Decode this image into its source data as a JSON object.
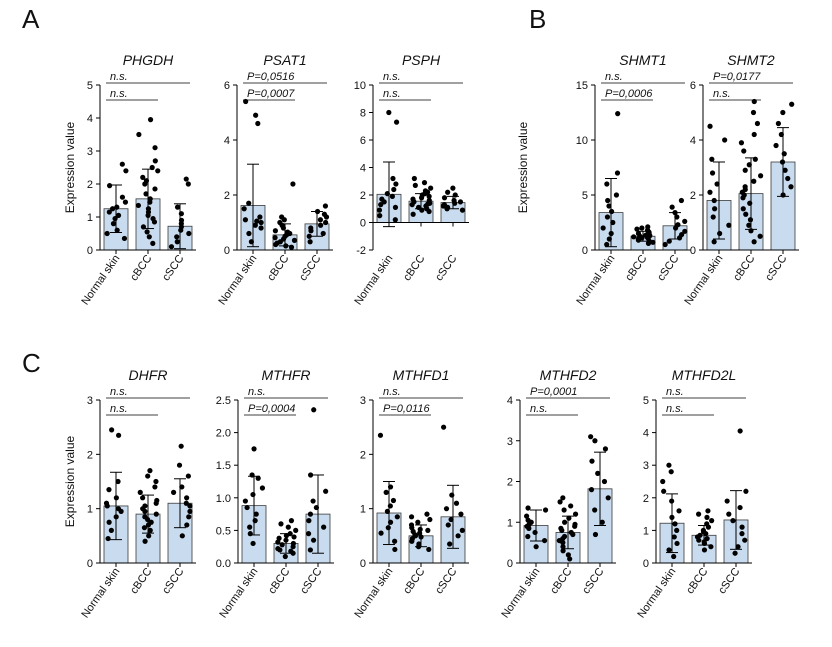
{
  "figure": {
    "panel_labels": [
      "A",
      "B",
      "C"
    ],
    "y_axis_label": "Expression value",
    "groups": [
      "Normal skin",
      "cBCC",
      "cSCC"
    ],
    "colors": {
      "bar": "#c9dcef",
      "bar_stroke": "#3a3a3a",
      "point": "#000000",
      "axis": "#000000"
    }
  },
  "chart_data": [
    {
      "type": "bar",
      "panel": "A",
      "title": "PHGDH",
      "categories": [
        "Normal skin",
        "cBCC",
        "cSCC"
      ],
      "values": [
        1.25,
        1.55,
        0.72
      ],
      "sd": [
        0.72,
        0.9,
        0.68
      ],
      "ylim": [
        0,
        5
      ],
      "yticks": [
        "0",
        "1",
        "2",
        "3",
        "4",
        "5"
      ],
      "points": [
        [
          0.35,
          0.5,
          0.6,
          0.8,
          0.95,
          1.05,
          1.15,
          1.25,
          1.3,
          1.45,
          1.6,
          1.95,
          2.4,
          2.6
        ],
        [
          0.2,
          0.4,
          0.55,
          0.7,
          0.85,
          0.95,
          1.05,
          1.15,
          1.25,
          1.35,
          1.45,
          1.55,
          1.7,
          1.85,
          2.0,
          2.1,
          2.2,
          2.4,
          2.5,
          2.7,
          3.1,
          3.5,
          3.95
        ],
        [
          0.1,
          0.25,
          0.4,
          0.5,
          0.6,
          0.7,
          0.8,
          0.9,
          1.1,
          1.3,
          2.0,
          2.15
        ]
      ],
      "annotations": [
        {
          "text": "n.s.",
          "from": 0,
          "to": 1,
          "level": 1
        },
        {
          "text": "n.s.",
          "from": 0,
          "to": 2,
          "level": 2
        }
      ]
    },
    {
      "type": "bar",
      "panel": "A",
      "title": "PSAT1",
      "categories": [
        "Normal skin",
        "cBCC",
        "cSCC"
      ],
      "values": [
        1.62,
        0.55,
        0.95
      ],
      "sd": [
        1.5,
        0.4,
        0.45
      ],
      "ylim": [
        0,
        6
      ],
      "yticks": [
        "0",
        "2",
        "4",
        "6"
      ],
      "points": [
        [
          0.3,
          0.6,
          0.8,
          0.9,
          1.0,
          1.05,
          1.1,
          1.2,
          1.5,
          1.7,
          4.6,
          4.9,
          5.4
        ],
        [
          0.1,
          0.15,
          0.2,
          0.25,
          0.3,
          0.35,
          0.4,
          0.45,
          0.5,
          0.55,
          0.6,
          0.65,
          0.7,
          0.8,
          0.9,
          1.0,
          1.1,
          1.2,
          2.4
        ],
        [
          0.3,
          0.5,
          0.6,
          0.7,
          0.8,
          0.9,
          1.0,
          1.1,
          1.2,
          1.3,
          1.4,
          1.6
        ]
      ],
      "annotations": [
        {
          "text": "P=0,0007",
          "from": 0,
          "to": 1,
          "level": 1
        },
        {
          "text": "P=0,0516",
          "from": 0,
          "to": 2,
          "level": 2
        }
      ]
    },
    {
      "type": "bar",
      "panel": "A",
      "title": "PSPH",
      "categories": [
        "Normal skin",
        "cBCC",
        "cSCC"
      ],
      "values": [
        2.05,
        1.55,
        1.45
      ],
      "sd": [
        2.35,
        0.55,
        0.45
      ],
      "ylim": [
        -2,
        10
      ],
      "yticks": [
        "-2",
        "0",
        "2",
        "4",
        "6",
        "8",
        "10"
      ],
      "points": [
        [
          0.2,
          0.5,
          0.9,
          1.1,
          1.3,
          1.5,
          1.7,
          1.9,
          2.1,
          2.4,
          2.8,
          3.2,
          7.3,
          8.0
        ],
        [
          0.6,
          0.8,
          0.9,
          1.0,
          1.1,
          1.2,
          1.3,
          1.35,
          1.4,
          1.5,
          1.6,
          1.7,
          1.8,
          1.9,
          2.0,
          2.1,
          2.2,
          2.3,
          2.5,
          2.7,
          2.9,
          3.2
        ],
        [
          0.9,
          1.0,
          1.1,
          1.2,
          1.3,
          1.4,
          1.5,
          1.6,
          1.8,
          2.0,
          2.2,
          2.5
        ]
      ],
      "annotations": [
        {
          "text": "n.s.",
          "from": 0,
          "to": 1,
          "level": 1
        },
        {
          "text": "n.s.",
          "from": 0,
          "to": 2,
          "level": 2
        }
      ]
    },
    {
      "type": "bar",
      "panel": "B",
      "title": "SHMT1",
      "categories": [
        "Normal skin",
        "cBCC",
        "cSCC"
      ],
      "values": [
        3.4,
        1.25,
        2.2
      ],
      "sd": [
        3.1,
        0.45,
        1.2
      ],
      "ylim": [
        0,
        15
      ],
      "yticks": [
        "0",
        "5",
        "10",
        "15"
      ],
      "points": [
        [
          0.5,
          1.0,
          1.5,
          2.0,
          2.5,
          3.0,
          3.5,
          4.0,
          4.5,
          5.0,
          6.0,
          7.0,
          12.4
        ],
        [
          0.6,
          0.7,
          0.8,
          0.9,
          1.0,
          1.05,
          1.1,
          1.15,
          1.2,
          1.25,
          1.3,
          1.35,
          1.4,
          1.5,
          1.6,
          1.7,
          1.8,
          1.9,
          2.0,
          2.1
        ],
        [
          0.5,
          0.8,
          1.1,
          1.4,
          1.7,
          2.0,
          2.3,
          2.6,
          3.0,
          3.4,
          3.9,
          4.5
        ]
      ],
      "annotations": [
        {
          "text": "P=0,0006",
          "from": 0,
          "to": 1,
          "level": 1
        },
        {
          "text": "n.s.",
          "from": 0,
          "to": 2,
          "level": 2
        }
      ]
    },
    {
      "type": "bar",
      "panel": "B",
      "title": "SHMT2",
      "categories": [
        "Normal skin",
        "cBCC",
        "cSCC"
      ],
      "values": [
        1.8,
        2.05,
        3.2
      ],
      "sd": [
        1.4,
        1.3,
        1.25
      ],
      "ylim": [
        0,
        6
      ],
      "yticks": [
        "0",
        "2",
        "4",
        "6"
      ],
      "points": [
        [
          0.3,
          0.6,
          0.9,
          1.2,
          1.5,
          1.8,
          2.1,
          2.4,
          2.8,
          3.3,
          4.0,
          4.5
        ],
        [
          0.3,
          0.5,
          0.7,
          0.9,
          1.1,
          1.3,
          1.5,
          1.7,
          1.9,
          2.0,
          2.1,
          2.2,
          2.3,
          2.5,
          2.7,
          2.9,
          3.1,
          3.3,
          3.6,
          3.9,
          4.2,
          4.6,
          5.0,
          5.4
        ],
        [
          2.0,
          2.3,
          2.6,
          2.9,
          3.2,
          3.5,
          3.8,
          4.2,
          4.6,
          5.0,
          5.3
        ]
      ],
      "annotations": [
        {
          "text": "n.s.",
          "from": 0,
          "to": 1,
          "level": 1
        },
        {
          "text": "P=0,0177",
          "from": 0,
          "to": 2,
          "level": 2
        }
      ]
    },
    {
      "type": "bar",
      "panel": "C",
      "title": "DHFR",
      "categories": [
        "Normal skin",
        "cBCC",
        "cSCC"
      ],
      "values": [
        1.05,
        0.9,
        1.1
      ],
      "sd": [
        0.62,
        0.35,
        0.45
      ],
      "ylim": [
        0,
        3
      ],
      "yticks": [
        "0",
        "1",
        "2",
        "3"
      ],
      "points": [
        [
          0.45,
          0.6,
          0.75,
          0.85,
          0.95,
          1.0,
          1.05,
          1.1,
          1.2,
          1.35,
          1.5,
          2.35,
          2.45
        ],
        [
          0.4,
          0.5,
          0.6,
          0.65,
          0.7,
          0.75,
          0.8,
          0.85,
          0.9,
          0.95,
          1.0,
          1.05,
          1.1,
          1.15,
          1.2,
          1.3,
          1.4,
          1.5,
          1.6,
          1.7
        ],
        [
          0.5,
          0.7,
          0.85,
          0.95,
          1.05,
          1.1,
          1.2,
          1.3,
          1.4,
          1.6,
          1.8,
          2.15
        ]
      ],
      "annotations": [
        {
          "text": "n.s.",
          "from": 0,
          "to": 1,
          "level": 1
        },
        {
          "text": "n.s.",
          "from": 0,
          "to": 2,
          "level": 2
        }
      ]
    },
    {
      "type": "bar",
      "panel": "C",
      "title": "MTHFR",
      "categories": [
        "Normal skin",
        "cBCC",
        "cSCC"
      ],
      "values": [
        0.88,
        0.3,
        0.75
      ],
      "sd": [
        0.45,
        0.15,
        0.6
      ],
      "ylim": [
        0,
        2.5
      ],
      "yticks": [
        "0.0",
        "0.5",
        "1.0",
        "1.5",
        "2.0",
        "2.5"
      ],
      "points": [
        [
          0.3,
          0.45,
          0.55,
          0.65,
          0.75,
          0.85,
          0.95,
          1.05,
          1.15,
          1.3,
          1.35,
          1.75
        ],
        [
          0.1,
          0.15,
          0.18,
          0.2,
          0.22,
          0.25,
          0.28,
          0.3,
          0.32,
          0.35,
          0.38,
          0.4,
          0.42,
          0.45,
          0.5,
          0.55,
          0.6,
          0.65
        ],
        [
          0.2,
          0.35,
          0.45,
          0.55,
          0.65,
          0.75,
          0.85,
          0.95,
          1.1,
          1.35,
          2.35
        ]
      ],
      "annotations": [
        {
          "text": "P=0,0004",
          "from": 0,
          "to": 1,
          "level": 1
        },
        {
          "text": "n.s.",
          "from": 0,
          "to": 2,
          "level": 2
        }
      ]
    },
    {
      "type": "bar",
      "panel": "C",
      "title": "MTHFD1",
      "categories": [
        "Normal skin",
        "cBCC",
        "cSCC"
      ],
      "values": [
        0.92,
        0.5,
        0.85
      ],
      "sd": [
        0.58,
        0.2,
        0.58
      ],
      "ylim": [
        0,
        3
      ],
      "yticks": [
        "0",
        "1",
        "2",
        "3"
      ],
      "points": [
        [
          0.25,
          0.4,
          0.55,
          0.65,
          0.75,
          0.85,
          0.95,
          1.05,
          1.15,
          1.3,
          1.4,
          2.35
        ],
        [
          0.25,
          0.3,
          0.35,
          0.4,
          0.45,
          0.48,
          0.5,
          0.52,
          0.55,
          0.58,
          0.6,
          0.62,
          0.65,
          0.7,
          0.75,
          0.8,
          0.85,
          0.9
        ],
        [
          0.35,
          0.5,
          0.6,
          0.7,
          0.8,
          0.9,
          1.0,
          1.1,
          1.25,
          2.5
        ]
      ],
      "annotations": [
        {
          "text": "P=0,0116",
          "from": 0,
          "to": 1,
          "level": 1
        },
        {
          "text": "n.s.",
          "from": 0,
          "to": 2,
          "level": 2
        }
      ]
    },
    {
      "type": "bar",
      "panel": "C",
      "title": "MTHFD2",
      "categories": [
        "Normal skin",
        "cBCC",
        "cSCC"
      ],
      "values": [
        0.92,
        0.75,
        1.82
      ],
      "sd": [
        0.38,
        0.4,
        0.9
      ],
      "ylim": [
        0,
        4
      ],
      "yticks": [
        "0",
        "1",
        "2",
        "3",
        "4"
      ],
      "points": [
        [
          0.4,
          0.55,
          0.65,
          0.75,
          0.85,
          0.9,
          0.95,
          1.0,
          1.05,
          1.15,
          1.3,
          1.35
        ],
        [
          0.1,
          0.2,
          0.3,
          0.4,
          0.5,
          0.55,
          0.6,
          0.65,
          0.7,
          0.75,
          0.8,
          0.85,
          0.9,
          0.95,
          1.0,
          1.1,
          1.2,
          1.3,
          1.4,
          1.5,
          1.6
        ],
        [
          0.7,
          1.0,
          1.3,
          1.6,
          1.8,
          2.0,
          2.2,
          2.5,
          2.8,
          3.0,
          3.1
        ]
      ],
      "annotations": [
        {
          "text": "n.s.",
          "from": 0,
          "to": 1,
          "level": 1
        },
        {
          "text": "P=0,0001",
          "from": 0,
          "to": 2,
          "level": 2
        }
      ]
    },
    {
      "type": "bar",
      "panel": "C",
      "title": "MTHFD2L",
      "categories": [
        "Normal skin",
        "cBCC",
        "cSCC"
      ],
      "values": [
        1.22,
        0.85,
        1.32
      ],
      "sd": [
        0.9,
        0.3,
        0.9
      ],
      "ylim": [
        0,
        5
      ],
      "yticks": [
        "0",
        "1",
        "2",
        "3",
        "4",
        "5"
      ],
      "points": [
        [
          0.2,
          0.4,
          0.6,
          0.8,
          1.0,
          1.2,
          1.4,
          1.6,
          1.9,
          2.2,
          2.5,
          2.8,
          3.0
        ],
        [
          0.4,
          0.5,
          0.6,
          0.65,
          0.7,
          0.75,
          0.8,
          0.85,
          0.9,
          0.95,
          1.0,
          1.1,
          1.2,
          1.3,
          1.4,
          1.5,
          1.6
        ],
        [
          0.3,
          0.5,
          0.7,
          0.9,
          1.1,
          1.3,
          1.5,
          1.7,
          1.9,
          2.2,
          4.05
        ]
      ],
      "annotations": [
        {
          "text": "n.s.",
          "from": 0,
          "to": 1,
          "level": 1
        },
        {
          "text": "n.s.",
          "from": 0,
          "to": 2,
          "level": 2
        }
      ]
    }
  ]
}
